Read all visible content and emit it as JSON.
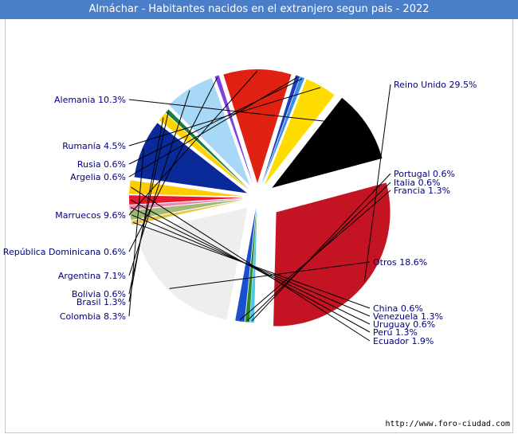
{
  "chart_data": {
    "type": "pie",
    "title": "Almáchar - Habitantes nacidos en el extranjero segun pais - 2022",
    "slices": [
      {
        "label": "Reino Unido",
        "display": "Reino Unido 29.5%",
        "value": 29.5,
        "color": "#c41424"
      },
      {
        "label": "Portugal",
        "display": "Portugal 0.6%",
        "value": 0.6,
        "color": "#4dc8e8"
      },
      {
        "label": "Italia",
        "display": "Italia 0.6%",
        "value": 0.6,
        "color": "#2a8a2a"
      },
      {
        "label": "Francia",
        "display": "Francia 1.3%",
        "value": 1.3,
        "color": "#1a4fd0"
      },
      {
        "label": "Otros",
        "display": "Otros 18.6%",
        "value": 18.6,
        "color": "#eeeeee"
      },
      {
        "label": "China",
        "display": "China 0.6%",
        "value": 0.6,
        "color": "#e8c84a"
      },
      {
        "label": "Venezuela",
        "display": "Venezuela 1.3%",
        "value": 1.3,
        "color": "#a0b878"
      },
      {
        "label": "Uruguay",
        "display": "Uruguay 0.6%",
        "value": 0.6,
        "color": "#e888b0"
      },
      {
        "label": "Perú",
        "display": "Perú 1.3%",
        "value": 1.3,
        "color": "#e81830"
      },
      {
        "label": "Ecuador",
        "display": "Ecuador 1.9%",
        "value": 1.9,
        "color": "#ffcc00"
      },
      {
        "label": "Colombia",
        "display": "Colombia 8.3%",
        "value": 8.3,
        "color": "#0a2a9a"
      },
      {
        "label": "Brasil",
        "display": "Brasil 1.3%",
        "value": 1.3,
        "color": "#ffd400"
      },
      {
        "label": "Bolivia",
        "display": "Bolivia 0.6%",
        "value": 0.6,
        "color": "#1a7a4a"
      },
      {
        "label": "Argentina",
        "display": "Argentina 7.1%",
        "value": 7.1,
        "color": "#a8d8f8"
      },
      {
        "label": "República Dominicana",
        "display": "República Dominicana 0.6%",
        "value": 0.6,
        "color": "#8040e0"
      },
      {
        "label": "Marruecos",
        "display": "Marruecos 9.6%",
        "value": 9.6,
        "color": "#e02010"
      },
      {
        "label": "Argelia",
        "display": "Argelia 0.6%",
        "value": 0.6,
        "color": "#1a40c0"
      },
      {
        "label": "Rusia",
        "display": "Rusia 0.6%",
        "value": 0.6,
        "color": "#3a90e0"
      },
      {
        "label": "Rumanía",
        "display": "Rumanía 4.5%",
        "value": 4.5,
        "color": "#ffdc00"
      },
      {
        "label": "Alemania",
        "display": "Alemania 10.3%",
        "value": 10.3,
        "color": "#000000"
      }
    ]
  },
  "footer": {
    "source": "http://www.foro-ciudad.com"
  }
}
